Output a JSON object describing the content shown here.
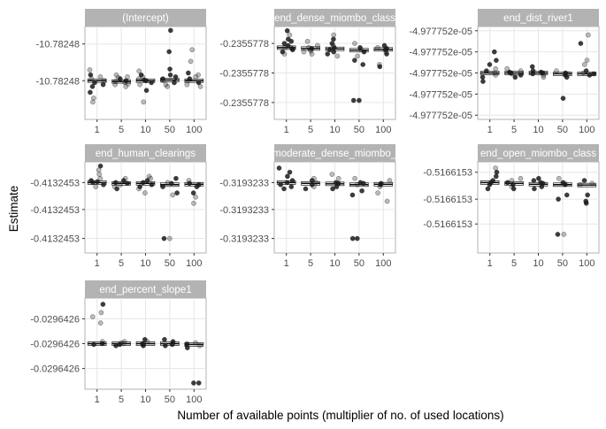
{
  "figure": {
    "xlabel": "Number of available points (multiplier of no. of used locations)",
    "ylabel": "Estimate"
  },
  "chart_data": {
    "type": "scatter",
    "description": "Faceted jitter + boxplot of coefficient estimates by number of available points",
    "categories": [
      "1",
      "5",
      "10",
      "50",
      "100"
    ],
    "grid": true,
    "colors": {
      "strip": "#b3b3b3",
      "panel_border": "#b3b3b3",
      "grid": "#e6e6e6",
      "point": "#1a1a1a"
    },
    "panels": [
      {
        "strip": "(Intercept)",
        "yticks": [
          "-10.78248",
          "-10.78248"
        ],
        "ylim": [
          -1.2,
          1.2
        ],
        "yticks_at": [
          0.75,
          -0.2
        ],
        "median": [
          -0.2,
          -0.22,
          -0.2,
          -0.18,
          -0.2
        ],
        "points": [
          [
            0.08,
            -0.35,
            -0.5,
            -0.65,
            -0.75,
            -0.05,
            -0.2,
            -0.15,
            -0.25,
            -0.3,
            -0.1
          ],
          [
            -0.1,
            -0.25,
            -0.3,
            -0.15,
            -0.2,
            -0.05,
            -0.35,
            -0.22,
            -0.28,
            -0.12
          ],
          [
            0.05,
            -0.45,
            -0.75,
            -0.1,
            -0.2,
            -0.3,
            -0.15,
            -0.25,
            -0.05,
            -0.18
          ],
          [
            1.1,
            0.55,
            -0.35,
            -0.1,
            -0.2,
            -0.25,
            -0.15,
            -0.05,
            -0.3,
            0.1
          ],
          [
            0.6,
            0.3,
            -0.35,
            -0.1,
            -0.2,
            -0.15,
            -0.25,
            -0.05,
            -0.3,
            0.0
          ]
        ]
      },
      {
        "strip": "end_dense_miombo_class",
        "yticks": [
          "-0.2355778",
          "-0.2355778",
          "-0.2355778"
        ],
        "ylim": [
          -1.1,
          1.1
        ],
        "yticks_at": [
          0.7,
          0.0,
          -0.7
        ],
        "median": [
          0.6,
          0.58,
          0.57,
          0.54,
          0.56
        ],
        "points": [
          [
            0.9,
            1.0,
            0.8,
            0.75,
            0.6,
            0.55,
            0.65,
            0.5,
            0.7,
            0.45,
            0.58
          ],
          [
            0.75,
            0.6,
            0.5,
            0.55,
            0.65,
            0.45,
            0.58,
            0.52
          ],
          [
            0.9,
            0.8,
            0.65,
            0.55,
            0.45,
            0.4,
            0.6,
            0.5,
            0.7
          ],
          [
            0.7,
            0.6,
            0.3,
            0.4,
            0.5,
            0.55,
            -0.65,
            -0.65,
            0.2
          ],
          [
            0.65,
            0.6,
            0.45,
            0.5,
            0.55,
            0.2,
            0.15,
            0.58
          ]
        ]
      },
      {
        "strip": "end_dist_river1",
        "yticks": [
          "-4.977752e-05",
          "-4.977752e-05",
          "-4.977752e-05",
          "-4.977752e-05",
          "-4.977752e-05"
        ],
        "ylim": [
          -1.1,
          1.1
        ],
        "yticks_at": [
          1.0,
          0.5,
          0.0,
          -0.5,
          -1.0
        ],
        "median": [
          0.0,
          0.0,
          0.0,
          -0.02,
          -0.02
        ],
        "points": [
          [
            0.5,
            0.3,
            0.2,
            0.1,
            -0.2,
            -0.1,
            0.0,
            0.05,
            -0.05
          ],
          [
            0.1,
            0.05,
            0.0,
            -0.05,
            -0.1,
            0.02,
            -0.02
          ],
          [
            0.15,
            0.05,
            0.0,
            -0.05,
            -0.1,
            0.02,
            -0.02
          ],
          [
            0.05,
            0.0,
            -0.05,
            -0.1,
            -0.6,
            -0.02
          ],
          [
            0.9,
            0.7,
            0.3,
            0.2,
            0.0,
            -0.05,
            0.05,
            -0.02
          ]
        ]
      },
      {
        "strip": "end_human_clearings",
        "yticks": [
          "-0.4132453",
          "-0.4132453",
          "-0.4132453"
        ],
        "ylim": [
          -1.1,
          1.1
        ],
        "yticks_at": [
          0.6,
          -0.05,
          -0.75
        ],
        "median": [
          0.6,
          0.58,
          0.58,
          0.55,
          0.56
        ],
        "points": [
          [
            1.0,
            0.9,
            0.8,
            0.7,
            0.65,
            0.6,
            0.55,
            0.5,
            0.62
          ],
          [
            0.7,
            0.65,
            0.55,
            0.5,
            0.45,
            0.6,
            0.58
          ],
          [
            0.75,
            0.7,
            0.65,
            0.55,
            0.45,
            0.35,
            0.6,
            0.5
          ],
          [
            0.7,
            0.6,
            0.5,
            0.35,
            0.3,
            -0.75,
            -0.75,
            0.58
          ],
          [
            0.65,
            0.55,
            0.35,
            0.25,
            0.1,
            0.58,
            0.5
          ]
        ]
      },
      {
        "strip": "end_moderate_dense_miombo_class",
        "yticks": [
          "-0.3193233",
          "-0.3193233",
          "-0.3193233"
        ],
        "ylim": [
          -1.1,
          1.1
        ],
        "yticks_at": [
          0.6,
          -0.05,
          -0.75
        ],
        "median": [
          0.6,
          0.58,
          0.57,
          0.55,
          0.56
        ],
        "points": [
          [
            0.95,
            0.85,
            0.75,
            0.65,
            0.55,
            0.45,
            0.6,
            0.5
          ],
          [
            0.7,
            0.65,
            0.55,
            0.5,
            0.45,
            0.6
          ],
          [
            0.8,
            0.7,
            0.6,
            0.5,
            0.45,
            0.58
          ],
          [
            0.7,
            0.6,
            0.55,
            0.4,
            0.3,
            -0.75,
            -0.75,
            0.58
          ],
          [
            0.65,
            0.55,
            0.35,
            0.15,
            0.58,
            0.5
          ]
        ]
      },
      {
        "strip": "end_open_miombo_class",
        "yticks": [
          "-0.5166153",
          "-0.5166153",
          "-0.5166153"
        ],
        "ylim": [
          -1.1,
          1.1
        ],
        "yticks_at": [
          0.85,
          0.2,
          -0.4
        ],
        "median": [
          0.6,
          0.58,
          0.56,
          0.55,
          0.54
        ],
        "points": [
          [
            0.95,
            0.85,
            0.75,
            0.65,
            0.55,
            0.45,
            0.6
          ],
          [
            0.7,
            0.65,
            0.55,
            0.5,
            0.45,
            0.6
          ],
          [
            0.7,
            0.65,
            0.6,
            0.5,
            0.45,
            0.58
          ],
          [
            0.7,
            0.6,
            0.55,
            0.3,
            0.2,
            -0.65,
            -0.65,
            0.58
          ],
          [
            0.65,
            0.55,
            0.3,
            0.15,
            0.1,
            0.58
          ]
        ]
      },
      {
        "strip": "end_percent_slope1",
        "yticks": [
          "-0.0296426",
          "-0.0296426",
          "-0.0296426"
        ],
        "ylim": [
          -1.1,
          1.1
        ],
        "yticks_at": [
          0.6,
          0.0,
          -0.6
        ],
        "median": [
          0.0,
          0.0,
          0.0,
          0.0,
          -0.02
        ],
        "points": [
          [
            0.95,
            0.75,
            0.65,
            0.5,
            0.05,
            0.0,
            -0.02
          ],
          [
            0.05,
            0.02,
            0.0,
            -0.02,
            -0.05
          ],
          [
            0.1,
            0.05,
            0.0,
            -0.02,
            -0.05
          ],
          [
            0.1,
            0.05,
            0.0,
            -0.02,
            -0.05
          ],
          [
            0.02,
            0.0,
            -0.02,
            -0.05,
            -0.1,
            -0.95,
            -0.95
          ]
        ]
      }
    ]
  }
}
